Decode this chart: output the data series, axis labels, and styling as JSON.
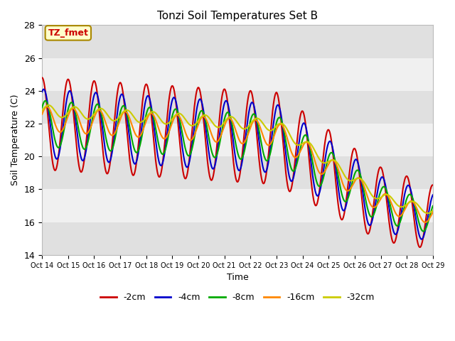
{
  "title": "Tonzi Soil Temperatures Set B",
  "xlabel": "Time",
  "ylabel": "Soil Temperature (C)",
  "xlim": [
    0,
    15
  ],
  "ylim": [
    14,
    28
  ],
  "yticks": [
    14,
    16,
    18,
    20,
    22,
    24,
    26,
    28
  ],
  "xtick_labels": [
    "Oct 14",
    "Oct 15",
    "Oct 16",
    "Oct 17",
    "Oct 18",
    "Oct 19",
    "Oct 20",
    "Oct 21",
    "Oct 22",
    "Oct 23",
    "Oct 24",
    "Oct 25",
    "Oct 26",
    "Oct 27",
    "Oct 28",
    "Oct 29"
  ],
  "annotation_text": "TZ_fmet",
  "annotation_color": "#cc0000",
  "annotation_bg": "#ffffcc",
  "annotation_border": "#aa8800",
  "colors": {
    "-2cm": "#cc0000",
    "-4cm": "#0000cc",
    "-8cm": "#00aa00",
    "-16cm": "#ff8800",
    "-32cm": "#cccc00"
  },
  "plot_bg": "#f0f0f0",
  "band_light": "#f8f8f8",
  "band_dark": "#e0e0e0",
  "linewidth": 1.5
}
